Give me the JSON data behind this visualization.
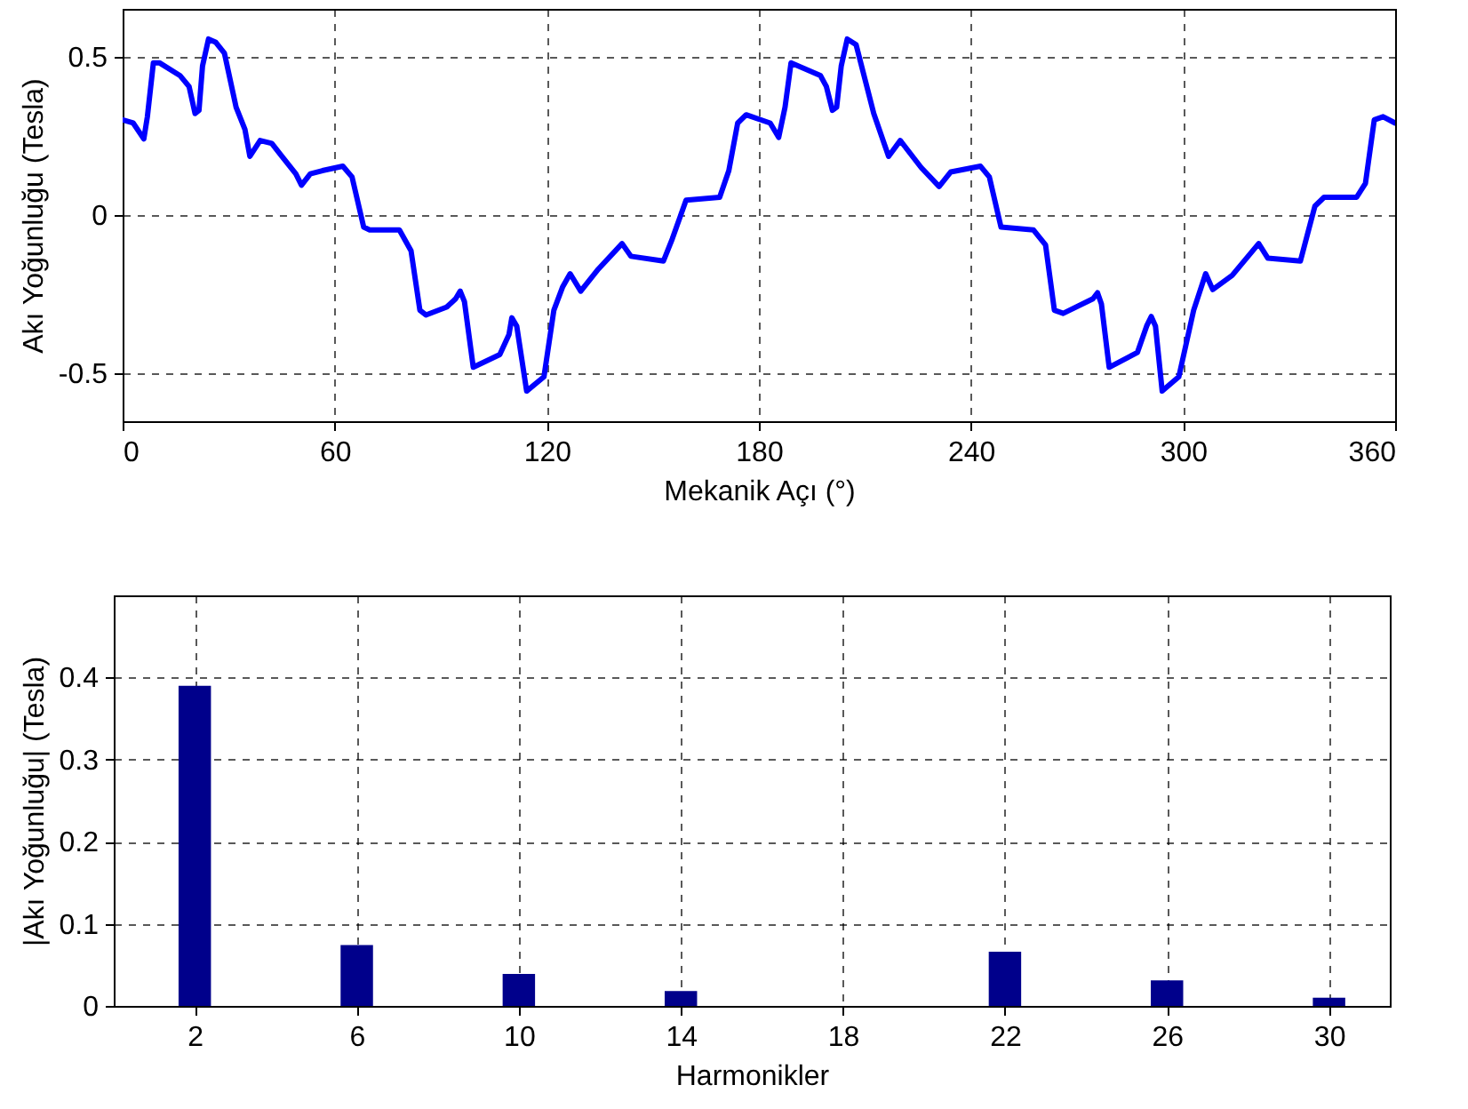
{
  "chart_data": [
    {
      "type": "line",
      "xlabel": "Mekanik Açı (°)",
      "ylabel": "Akı Yoğunluğu (Tesla)",
      "color": "#0000ff",
      "grid": true,
      "xlim": [
        0,
        360
      ],
      "xticks": [
        0,
        60,
        120,
        180,
        240,
        300,
        360
      ],
      "ylim": [
        -0.65,
        0.65
      ],
      "yticks": [
        -0.5,
        0,
        0.5
      ],
      "x": [
        0,
        3,
        6,
        7,
        8.7,
        10.4,
        16.2,
        18.8,
        20.5,
        21.6,
        22.6,
        24.3,
        26.3,
        28.8,
        32.1,
        34.6,
        36,
        38.9,
        42.2,
        44.7,
        49,
        50.6,
        53.1,
        56.5,
        62.3,
        64.9,
        68.2,
        69.9,
        78.3,
        81.6,
        84.1,
        85.8,
        91.7,
        94.2,
        95.5,
        96.7,
        99.2,
        106.7,
        109.3,
        110.1,
        111.5,
        114.3,
        119.2,
        122,
        124.5,
        126.6,
        129.6,
        134.6,
        141.3,
        143.8,
        153,
        155.5,
        159.4,
        168.9,
        171.5,
        174,
        176.4,
        183.2,
        185.6,
        187.4,
        189.1,
        197.4,
        199.1,
        200.8,
        202,
        203.3,
        205,
        207.5,
        212.5,
        216.7,
        220,
        225.9,
        231,
        234.3,
        242.7,
        245.2,
        248.5,
        257.7,
        261.1,
        263.6,
        266.1,
        274.5,
        275.8,
        276.9,
        279.1,
        287.1,
        289.7,
        291,
        292.2,
        294.1,
        298.8,
        303,
        306.4,
        308.4,
        313.9,
        321.4,
        324,
        333.2,
        337.3,
        339.9,
        349.1,
        351.6,
        354.1,
        356.6,
        360
      ],
      "values": [
        0.3,
        0.29,
        0.24,
        0.31,
        0.48,
        0.48,
        0.44,
        0.405,
        0.32,
        0.33,
        0.47,
        0.555,
        0.545,
        0.51,
        0.34,
        0.27,
        0.185,
        0.235,
        0.226,
        0.19,
        0.13,
        0.094,
        0.13,
        0.14,
        0.154,
        0.12,
        -0.038,
        -0.047,
        -0.047,
        -0.113,
        -0.3,
        -0.315,
        -0.29,
        -0.264,
        -0.24,
        -0.273,
        -0.48,
        -0.44,
        -0.377,
        -0.324,
        -0.35,
        -0.555,
        -0.51,
        -0.3,
        -0.226,
        -0.185,
        -0.24,
        -0.17,
        -0.09,
        -0.13,
        -0.145,
        -0.075,
        0.047,
        0.056,
        0.14,
        0.29,
        0.316,
        0.29,
        0.245,
        0.34,
        0.48,
        0.44,
        0.405,
        0.33,
        0.34,
        0.47,
        0.555,
        0.537,
        0.32,
        0.185,
        0.235,
        0.15,
        0.09,
        0.136,
        0.154,
        0.12,
        -0.038,
        -0.047,
        -0.094,
        -0.3,
        -0.31,
        -0.264,
        -0.245,
        -0.28,
        -0.48,
        -0.433,
        -0.35,
        -0.32,
        -0.35,
        -0.555,
        -0.51,
        -0.3,
        -0.185,
        -0.235,
        -0.19,
        -0.09,
        -0.136,
        -0.145,
        0.028,
        0.056,
        0.056,
        0.1,
        0.3,
        0.31,
        0.29
      ]
    },
    {
      "type": "bar",
      "xlabel": "Harmonikler",
      "ylabel": "|Akı Yoğunluğu| (Tesla)",
      "color": "#00008b",
      "grid": true,
      "xlim": [
        0,
        31.5
      ],
      "xticks": [
        2,
        6,
        10,
        14,
        18,
        22,
        26,
        30
      ],
      "ylim": [
        0,
        0.5
      ],
      "yticks": [
        0,
        0.1,
        0.2,
        0.3,
        0.4
      ],
      "x": [
        1,
        2,
        3,
        4,
        5,
        6,
        7,
        8,
        9,
        10,
        11,
        12,
        13,
        14,
        15,
        16,
        17,
        18,
        19,
        20,
        21,
        22,
        23,
        24,
        25,
        26,
        27,
        28,
        29,
        30,
        31
      ],
      "values": [
        0,
        0.39,
        0,
        0,
        0,
        0.074,
        0,
        0,
        0,
        0.039,
        0,
        0,
        0,
        0.018,
        0,
        0,
        0,
        0,
        0,
        0,
        0,
        0.066,
        0,
        0,
        0,
        0.031,
        0,
        0,
        0,
        0.01,
        0
      ]
    }
  ]
}
